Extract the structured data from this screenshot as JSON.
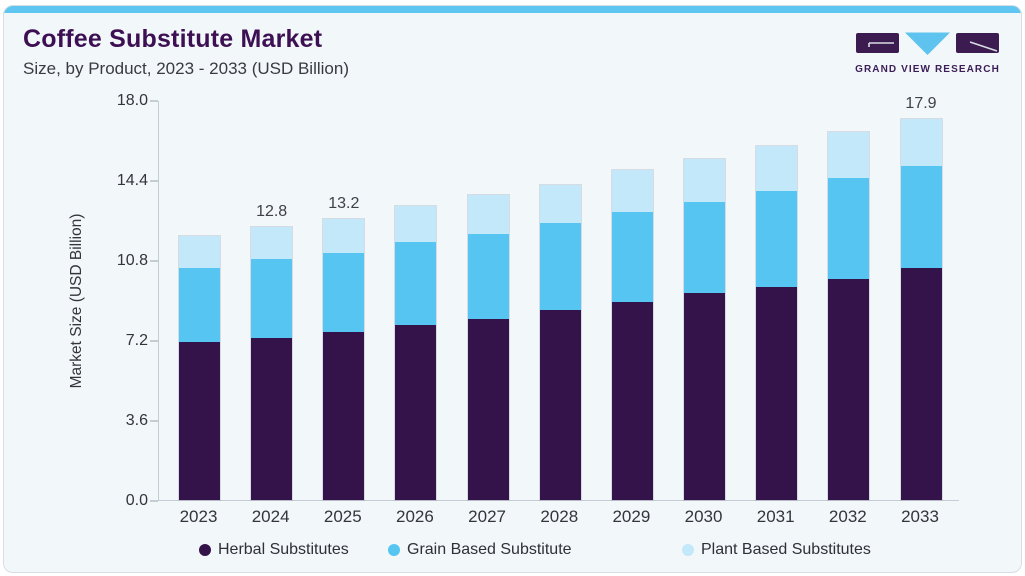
{
  "page": {
    "title": "Coffee Substitute Market",
    "subtitle": "Size, by Product, 2023 - 2033 (USD Billion)"
  },
  "brand": {
    "name": "GRAND VIEW RESEARCH"
  },
  "colors": {
    "accent_strip": "#5ec6f1",
    "title_purple": "#3d1054",
    "logo_purple": "#3b1b50",
    "logo_blue": "#5ec4ef",
    "axis_line": "#c6ccd4",
    "card_background": "#f2f7fa"
  },
  "chart_data": {
    "type": "bar",
    "stacked": true,
    "title": "Coffee Substitute Market Size, by Product, 2023 - 2033 (USD Billion)",
    "xlabel": "",
    "ylabel": "Market Size (USD Billion)",
    "ylim": [
      0,
      18
    ],
    "yticks": [
      "0.0",
      "3.6",
      "7.2",
      "10.8",
      "14.4",
      "18.0"
    ],
    "grid": false,
    "legend_position": "bottom",
    "categories": [
      "2023",
      "2024",
      "2025",
      "2026",
      "2027",
      "2028",
      "2029",
      "2030",
      "2031",
      "2032",
      "2033"
    ],
    "series": [
      {
        "name": "Herbal Substitutes",
        "color": "#331349",
        "values": [
          7.4,
          7.6,
          7.9,
          8.2,
          8.5,
          8.9,
          9.3,
          9.7,
          10.0,
          10.4,
          10.9
        ]
      },
      {
        "name": "Grain Based Substitute",
        "color": "#56c5f1",
        "values": [
          3.5,
          3.7,
          3.7,
          3.9,
          4.0,
          4.1,
          4.2,
          4.3,
          4.5,
          4.7,
          4.8
        ]
      },
      {
        "name": "Plant Based Substitutes",
        "color": "#c2e8fa",
        "values": [
          1.5,
          1.5,
          1.6,
          1.7,
          1.8,
          1.8,
          2.0,
          2.0,
          2.1,
          2.2,
          2.2
        ]
      }
    ],
    "totals": [
      12.4,
      12.8,
      13.2,
      13.8,
      14.3,
      14.8,
      15.5,
      16.0,
      16.6,
      17.3,
      17.9
    ],
    "bar_value_labels": {
      "2024": "12.8",
      "2025": "13.2",
      "2033": "17.9"
    }
  }
}
